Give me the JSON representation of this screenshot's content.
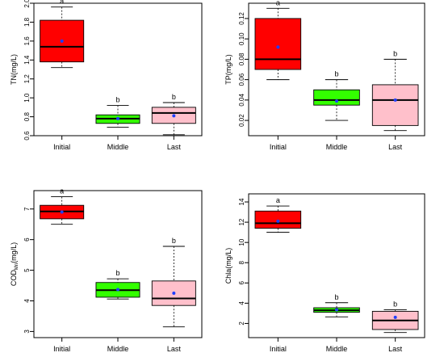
{
  "chart_data": [
    {
      "type": "box",
      "ylabel": "TN(mg/L)",
      "categories": [
        "Initial",
        "Middle",
        "Last"
      ],
      "ylim": [
        0.6,
        2.0
      ],
      "yticks": [
        "0.6",
        "0.8",
        "1.0",
        "1.2",
        "1.4",
        "1.6",
        "1.8",
        "2.0"
      ],
      "ytick_values": [
        0.6,
        0.8,
        1.0,
        1.2,
        1.4,
        1.6,
        1.8,
        2.0
      ],
      "boxes": [
        {
          "min": 1.32,
          "q1": 1.38,
          "median": 1.54,
          "q3": 1.82,
          "max": 1.96,
          "mean": 1.6,
          "color": "#ff0000",
          "letter": "a"
        },
        {
          "min": 0.69,
          "q1": 0.73,
          "median": 0.78,
          "q3": 0.82,
          "max": 0.92,
          "mean": 0.78,
          "color": "#33ff00",
          "letter": "b"
        },
        {
          "min": 0.61,
          "q1": 0.73,
          "median": 0.84,
          "q3": 0.9,
          "max": 0.95,
          "mean": 0.81,
          "color": "#ffc0cb",
          "letter": "b"
        }
      ]
    },
    {
      "type": "box",
      "ylabel": "TP(mg/L)",
      "categories": [
        "Initial",
        "Middle",
        "Last"
      ],
      "ylim": [
        0.005,
        0.135
      ],
      "yticks": [
        "0.02",
        "0.04",
        "0.06",
        "0.08",
        "0.10",
        "0.12"
      ],
      "ytick_values": [
        0.02,
        0.04,
        0.06,
        0.08,
        0.1,
        0.12
      ],
      "boxes": [
        {
          "min": 0.06,
          "q1": 0.07,
          "median": 0.08,
          "q3": 0.12,
          "max": 0.13,
          "mean": 0.092,
          "color": "#ff0000",
          "letter": "a"
        },
        {
          "min": 0.02,
          "q1": 0.035,
          "median": 0.04,
          "q3": 0.05,
          "max": 0.06,
          "mean": 0.039,
          "color": "#33ff00",
          "letter": "b"
        },
        {
          "min": 0.01,
          "q1": 0.015,
          "median": 0.04,
          "q3": 0.055,
          "max": 0.08,
          "mean": 0.04,
          "color": "#ffc0cb",
          "letter": "b"
        }
      ]
    },
    {
      "type": "box",
      "ylabel": "COD",
      "ylabel_sub": "Mn",
      "ylabel_suffix": "(mg/L)",
      "categories": [
        "Initial",
        "Middle",
        "Last"
      ],
      "ylim": [
        2.8,
        7.6
      ],
      "yticks": [
        "3",
        "4",
        "5",
        "6",
        "7"
      ],
      "ytick_values": [
        3,
        4,
        5,
        6,
        7
      ],
      "boxes": [
        {
          "min": 6.5,
          "q1": 6.68,
          "median": 6.92,
          "q3": 7.12,
          "max": 7.4,
          "mean": 6.9,
          "color": "#ff0000",
          "letter": "a"
        },
        {
          "min": 4.06,
          "q1": 4.12,
          "median": 4.35,
          "q3": 4.6,
          "max": 4.72,
          "mean": 4.37,
          "color": "#33ff00",
          "letter": "b"
        },
        {
          "min": 3.15,
          "q1": 3.85,
          "median": 4.08,
          "q3": 4.65,
          "max": 5.78,
          "mean": 4.25,
          "color": "#ffc0cb",
          "letter": "b"
        }
      ]
    },
    {
      "type": "box",
      "ylabel": "Chla(mg/L)",
      "categories": [
        "Initial",
        "Middle",
        "Last"
      ],
      "ylim": [
        0.6,
        14.8
      ],
      "yticks": [
        "2",
        "4",
        "6",
        "8",
        "10",
        "12",
        "14"
      ],
      "ytick_values": [
        2,
        4,
        6,
        8,
        10,
        12,
        14
      ],
      "boxes": [
        {
          "min": 11.0,
          "q1": 11.4,
          "median": 11.9,
          "q3": 13.1,
          "max": 13.6,
          "mean": 12.1,
          "color": "#ff0000",
          "letter": "a"
        },
        {
          "min": 2.65,
          "q1": 3.1,
          "median": 3.3,
          "q3": 3.55,
          "max": 4.05,
          "mean": 3.35,
          "color": "#33ff00",
          "letter": "b"
        },
        {
          "min": 1.1,
          "q1": 1.4,
          "median": 2.3,
          "q3": 3.2,
          "max": 3.35,
          "mean": 2.6,
          "color": "#ffc0cb",
          "letter": "b"
        }
      ]
    }
  ]
}
